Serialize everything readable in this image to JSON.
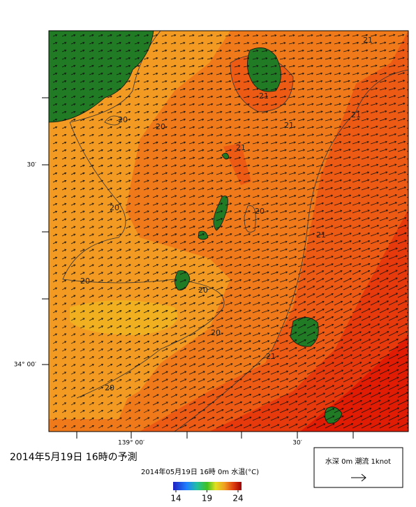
{
  "map": {
    "lat_labels": [
      "30′",
      "34° 00′"
    ],
    "lon_labels": [
      "139° 00′",
      "30′"
    ],
    "contour_labels": [
      21,
      21,
      21,
      21,
      21,
      20,
      20,
      20,
      20,
      21,
      20,
      20,
      20,
      21,
      20
    ]
  },
  "caption": {
    "title": "2014年5月19日 16時の予測",
    "subtitle": "2014年05月19日 16時 0m 水温(°C)"
  },
  "colorbar": {
    "range": [
      14,
      24
    ],
    "ticks": [
      14,
      19,
      24
    ]
  },
  "legend": {
    "text": "水深 0m 潮流 1knot"
  }
}
